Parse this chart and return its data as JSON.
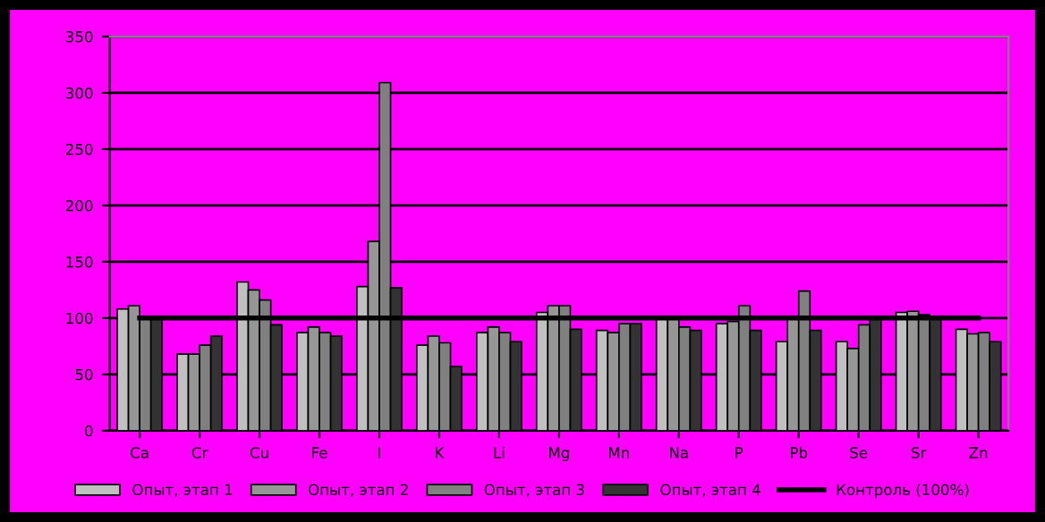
{
  "chart_data": {
    "type": "bar",
    "categories": [
      "Ca",
      "Cr",
      "Cu",
      "Fe",
      "I",
      "K",
      "Li",
      "Mg",
      "Mn",
      "Na",
      "P",
      "Pb",
      "Se",
      "Sr",
      "Zn"
    ],
    "series": [
      {
        "name": "Опыт, этап 1",
        "color": "#c0c0c0",
        "values": [
          108,
          68,
          132,
          87,
          128,
          76,
          87,
          105,
          89,
          100,
          95,
          79,
          79,
          105,
          90
        ]
      },
      {
        "name": "Опыт, этап 2",
        "color": "#969696",
        "values": [
          111,
          68,
          125,
          92,
          168,
          84,
          92,
          111,
          87,
          100,
          97,
          100,
          73,
          106,
          86
        ]
      },
      {
        "name": "Опыт, этап 3",
        "color": "#808080",
        "values": [
          100,
          76,
          116,
          87,
          309,
          78,
          87,
          111,
          95,
          92,
          111,
          124,
          94,
          103,
          87
        ]
      },
      {
        "name": "Опыт, этап 4",
        "color": "#333333",
        "values": [
          100,
          84,
          94,
          84,
          127,
          57,
          79,
          90,
          95,
          89,
          89,
          89,
          100,
          100,
          79
        ]
      },
      {
        "name": "Контроль (100%)",
        "type": "line",
        "color": "#000000",
        "values": [
          100,
          100,
          100,
          100,
          100,
          100,
          100,
          100,
          100,
          100,
          100,
          100,
          100,
          100,
          100
        ]
      }
    ],
    "ylim": [
      0,
      350
    ],
    "yticks": [
      0,
      50,
      100,
      150,
      200,
      250,
      300,
      350
    ],
    "grid": "y",
    "legend": "bottom"
  }
}
